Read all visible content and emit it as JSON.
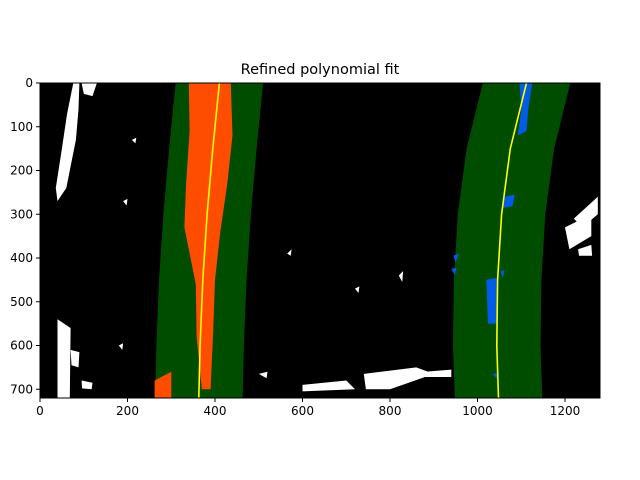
{
  "chart_data": {
    "type": "image",
    "title": "Refined polynomial fit",
    "xlim": [
      0,
      1280
    ],
    "ylim": [
      720,
      0
    ],
    "x_ticks": [
      0,
      200,
      400,
      600,
      800,
      1000,
      1200
    ],
    "y_ticks": [
      0,
      100,
      200,
      300,
      400,
      500,
      600,
      700
    ],
    "grid": false,
    "search_margin": 100,
    "colors": {
      "background": "#000000",
      "search_window": "#004d00",
      "left_lane_pixels": "#ff4d00",
      "right_lane_pixels": "#005ce6",
      "fit_line": "#ffff00",
      "other_pixels": "#ffffff"
    },
    "left_fit": {
      "name": "left",
      "points": [
        [
          410,
          0
        ],
        [
          395,
          150
        ],
        [
          382,
          300
        ],
        [
          372,
          450
        ],
        [
          366,
          600
        ],
        [
          363,
          720
        ]
      ]
    },
    "right_fit": {
      "name": "right",
      "points": [
        [
          1112,
          0
        ],
        [
          1075,
          150
        ],
        [
          1055,
          300
        ],
        [
          1046,
          450
        ],
        [
          1044,
          600
        ],
        [
          1048,
          720
        ]
      ]
    },
    "left_lane_pixels": [
      [
        [
          340,
          0
        ],
        [
          436,
          0
        ],
        [
          440,
          120
        ],
        [
          428,
          230
        ],
        [
          412,
          340
        ],
        [
          400,
          450
        ],
        [
          396,
          560
        ],
        [
          390,
          700
        ],
        [
          370,
          700
        ],
        [
          358,
          580
        ],
        [
          356,
          460
        ],
        [
          330,
          330
        ],
        [
          334,
          230
        ],
        [
          342,
          110
        ]
      ],
      [
        [
          262,
          680
        ],
        [
          300,
          660
        ],
        [
          300,
          720
        ],
        [
          262,
          720
        ]
      ]
    ],
    "right_lane_pixels": [
      [
        [
          1096,
          0
        ],
        [
          1125,
          0
        ],
        [
          1116,
          60
        ],
        [
          1112,
          110
        ],
        [
          1092,
          120
        ],
        [
          1100,
          60
        ]
      ],
      [
        [
          1062,
          260
        ],
        [
          1085,
          255
        ],
        [
          1080,
          282
        ],
        [
          1058,
          285
        ]
      ],
      [
        [
          1020,
          450
        ],
        [
          1045,
          445
        ],
        [
          1046,
          550
        ],
        [
          1024,
          550
        ]
      ],
      [
        [
          945,
          395
        ],
        [
          958,
          390
        ],
        [
          950,
          410
        ]
      ],
      [
        [
          940,
          425
        ],
        [
          952,
          422
        ],
        [
          948,
          440
        ]
      ],
      [
        [
          1052,
          430
        ],
        [
          1062,
          428
        ],
        [
          1058,
          445
        ]
      ],
      [
        [
          1035,
          665
        ],
        [
          1048,
          662
        ],
        [
          1044,
          676
        ]
      ]
    ],
    "other_pixels": [
      [
        [
          76,
          0
        ],
        [
          90,
          0
        ],
        [
          88,
          60
        ],
        [
          82,
          130
        ],
        [
          60,
          240
        ],
        [
          40,
          270
        ],
        [
          36,
          240
        ],
        [
          50,
          150
        ],
        [
          62,
          70
        ]
      ],
      [
        [
          95,
          0
        ],
        [
          130,
          0
        ],
        [
          120,
          30
        ],
        [
          100,
          25
        ]
      ],
      [
        [
          40,
          540
        ],
        [
          70,
          560
        ],
        [
          68,
          720
        ],
        [
          40,
          720
        ]
      ],
      [
        [
          70,
          610
        ],
        [
          90,
          615
        ],
        [
          88,
          650
        ],
        [
          72,
          645
        ]
      ],
      [
        [
          95,
          680
        ],
        [
          120,
          685
        ],
        [
          118,
          700
        ],
        [
          96,
          698
        ]
      ],
      [
        [
          600,
          690
        ],
        [
          700,
          680
        ],
        [
          720,
          700
        ],
        [
          600,
          705
        ]
      ],
      [
        [
          740,
          665
        ],
        [
          860,
          650
        ],
        [
          900,
          665
        ],
        [
          800,
          700
        ],
        [
          745,
          700
        ]
      ],
      [
        [
          880,
          660
        ],
        [
          940,
          655
        ],
        [
          940,
          672
        ],
        [
          880,
          672
        ]
      ],
      [
        [
          1220,
          310
        ],
        [
          1275,
          260
        ],
        [
          1275,
          300
        ],
        [
          1240,
          330
        ]
      ],
      [
        [
          1200,
          330
        ],
        [
          1260,
          300
        ],
        [
          1260,
          350
        ],
        [
          1210,
          380
        ]
      ],
      [
        [
          1230,
          380
        ],
        [
          1260,
          370
        ],
        [
          1262,
          395
        ],
        [
          1232,
          395
        ]
      ],
      [
        [
          820,
          440
        ],
        [
          830,
          430
        ],
        [
          828,
          455
        ]
      ],
      [
        [
          720,
          470
        ],
        [
          730,
          465
        ],
        [
          728,
          480
        ]
      ],
      [
        [
          565,
          390
        ],
        [
          575,
          380
        ],
        [
          573,
          395
        ]
      ],
      [
        [
          210,
          130
        ],
        [
          220,
          125
        ],
        [
          218,
          138
        ]
      ],
      [
        [
          190,
          270
        ],
        [
          200,
          265
        ],
        [
          198,
          280
        ]
      ],
      [
        [
          180,
          600
        ],
        [
          190,
          595
        ],
        [
          188,
          610
        ]
      ],
      [
        [
          500,
          665
        ],
        [
          520,
          660
        ],
        [
          518,
          675
        ]
      ]
    ]
  }
}
